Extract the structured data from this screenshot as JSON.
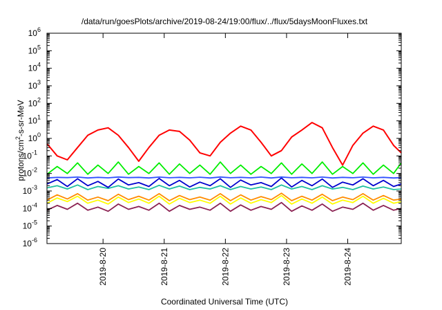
{
  "chart_data": {
    "type": "line",
    "title": "/data/run/goesPlots/archive/2019-08-24/19:00/flux/../flux/5daysMoonFluxes.txt",
    "xlabel": "Coordinated Universal Time (UTC)",
    "ylabel": {
      "prefix": "protons/cm",
      "sup": "2",
      "suffix": "-s-sr-MeV"
    },
    "x_scale": "time",
    "y_scale": "log",
    "ylim": [
      1e-06,
      1000000.0
    ],
    "xlim": [
      "2019-08-19T02:00",
      "2019-08-24T21:00"
    ],
    "y_ticks": [
      {
        "value": 1e-06,
        "base": "10",
        "exp": "-6"
      },
      {
        "value": 1e-05,
        "base": "10",
        "exp": "-5"
      },
      {
        "value": 0.0001,
        "base": "10",
        "exp": "-4"
      },
      {
        "value": 0.001,
        "base": "10",
        "exp": "-3"
      },
      {
        "value": 0.01,
        "base": "10",
        "exp": "-2"
      },
      {
        "value": 0.1,
        "base": "10",
        "exp": "-1"
      },
      {
        "value": 1.0,
        "base": "10",
        "exp": "0"
      },
      {
        "value": 10.0,
        "base": "10",
        "exp": "1"
      },
      {
        "value": 100.0,
        "base": "10",
        "exp": "2"
      },
      {
        "value": 1000.0,
        "base": "10",
        "exp": "3"
      },
      {
        "value": 10000.0,
        "base": "10",
        "exp": "4"
      },
      {
        "value": 100000.0,
        "base": "10",
        "exp": "5"
      },
      {
        "value": 1000000.0,
        "base": "10",
        "exp": "6"
      }
    ],
    "x_ticks": [
      {
        "value": "2019-08-20T00:00",
        "label": "2019-8-20"
      },
      {
        "value": "2019-08-21T00:00",
        "label": "2019-8-21"
      },
      {
        "value": "2019-08-22T00:00",
        "label": "2019-8-22"
      },
      {
        "value": "2019-08-23T00:00",
        "label": "2019-8-23"
      },
      {
        "value": "2019-08-24T00:00",
        "label": "2019-8-24"
      }
    ],
    "grid": false,
    "legend": "none",
    "series": [
      {
        "color": "#8b2252",
        "x": [
          "2019-08-19T02:00",
          "2019-08-19T06:00",
          "2019-08-19T10:00",
          "2019-08-19T14:00",
          "2019-08-19T18:00",
          "2019-08-19T22:00",
          "2019-08-20T02:00",
          "2019-08-20T06:00",
          "2019-08-20T10:00",
          "2019-08-20T14:00",
          "2019-08-20T18:00",
          "2019-08-20T22:00",
          "2019-08-21T02:00",
          "2019-08-21T06:00",
          "2019-08-21T10:00",
          "2019-08-21T14:00",
          "2019-08-21T18:00",
          "2019-08-21T22:00",
          "2019-08-22T02:00",
          "2019-08-22T06:00",
          "2019-08-22T10:00",
          "2019-08-22T14:00",
          "2019-08-22T18:00",
          "2019-08-22T22:00",
          "2019-08-23T02:00",
          "2019-08-23T06:00",
          "2019-08-23T10:00",
          "2019-08-23T14:00",
          "2019-08-23T18:00",
          "2019-08-23T22:00",
          "2019-08-24T02:00",
          "2019-08-24T06:00",
          "2019-08-24T10:00",
          "2019-08-24T14:00",
          "2019-08-24T18:00",
          "2019-08-24T21:00"
        ],
        "values": [
          8e-05,
          0.00015,
          9e-05,
          0.0002,
          8e-05,
          0.00012,
          7e-05,
          0.00018,
          9e-05,
          0.00013,
          8e-05,
          0.0002,
          7e-05,
          0.00015,
          9e-05,
          0.00012,
          8e-05,
          0.0002,
          7e-05,
          0.00016,
          8e-05,
          0.00013,
          9e-05,
          0.00022,
          7e-05,
          0.00014,
          8e-05,
          0.00018,
          7e-05,
          0.00012,
          9e-05,
          0.0002,
          8e-05,
          0.00015,
          8e-05,
          0.0001
        ]
      },
      {
        "color": "#ffff00",
        "x": [
          "2019-08-19T02:00",
          "2019-08-19T06:00",
          "2019-08-19T10:00",
          "2019-08-19T14:00",
          "2019-08-19T18:00",
          "2019-08-19T22:00",
          "2019-08-20T02:00",
          "2019-08-20T06:00",
          "2019-08-20T10:00",
          "2019-08-20T14:00",
          "2019-08-20T18:00",
          "2019-08-20T22:00",
          "2019-08-21T02:00",
          "2019-08-21T06:00",
          "2019-08-21T10:00",
          "2019-08-21T14:00",
          "2019-08-21T18:00",
          "2019-08-21T22:00",
          "2019-08-22T02:00",
          "2019-08-22T06:00",
          "2019-08-22T10:00",
          "2019-08-22T14:00",
          "2019-08-22T18:00",
          "2019-08-22T22:00",
          "2019-08-23T02:00",
          "2019-08-23T06:00",
          "2019-08-23T10:00",
          "2019-08-23T14:00",
          "2019-08-23T18:00",
          "2019-08-23T22:00",
          "2019-08-24T02:00",
          "2019-08-24T06:00",
          "2019-08-24T10:00",
          "2019-08-24T14:00",
          "2019-08-24T18:00",
          "2019-08-24T21:00"
        ],
        "values": [
          0.0002,
          0.0004,
          0.00025,
          0.0005,
          0.0002,
          0.0003,
          0.00018,
          0.00045,
          0.00022,
          0.00035,
          0.0002,
          0.0005,
          0.00018,
          0.00038,
          0.00022,
          0.0003,
          0.0002,
          0.0005,
          0.00018,
          0.0004,
          0.0002,
          0.00032,
          0.00022,
          0.00055,
          0.00018,
          0.00035,
          0.0002,
          0.00045,
          0.00018,
          0.0003,
          0.00022,
          0.0005,
          0.0002,
          0.00038,
          0.0002,
          0.00025
        ]
      },
      {
        "color": "#ff8c00",
        "x": [
          "2019-08-19T02:00",
          "2019-08-19T06:00",
          "2019-08-19T10:00",
          "2019-08-19T14:00",
          "2019-08-19T18:00",
          "2019-08-19T22:00",
          "2019-08-20T02:00",
          "2019-08-20T06:00",
          "2019-08-20T10:00",
          "2019-08-20T14:00",
          "2019-08-20T18:00",
          "2019-08-20T22:00",
          "2019-08-21T02:00",
          "2019-08-21T06:00",
          "2019-08-21T10:00",
          "2019-08-21T14:00",
          "2019-08-21T18:00",
          "2019-08-21T22:00",
          "2019-08-22T02:00",
          "2019-08-22T06:00",
          "2019-08-22T10:00",
          "2019-08-22T14:00",
          "2019-08-22T18:00",
          "2019-08-22T22:00",
          "2019-08-23T02:00",
          "2019-08-23T06:00",
          "2019-08-23T10:00",
          "2019-08-23T14:00",
          "2019-08-23T18:00",
          "2019-08-23T22:00",
          "2019-08-24T02:00",
          "2019-08-24T06:00",
          "2019-08-24T10:00",
          "2019-08-24T14:00",
          "2019-08-24T18:00",
          "2019-08-24T21:00"
        ],
        "values": [
          0.0003,
          0.0006,
          0.00035,
          0.0007,
          0.0003,
          0.00045,
          0.00028,
          0.00065,
          0.00032,
          0.0005,
          0.0003,
          0.0007,
          0.00028,
          0.00055,
          0.00032,
          0.00045,
          0.0003,
          0.0007,
          0.00028,
          0.0006,
          0.0003,
          0.00048,
          0.00032,
          0.00075,
          0.00028,
          0.0005,
          0.0003,
          0.00065,
          0.00028,
          0.00045,
          0.00032,
          0.0007,
          0.0003,
          0.00055,
          0.0003,
          0.00035
        ]
      },
      {
        "color": "#20c0a0",
        "x": [
          "2019-08-19T02:00",
          "2019-08-19T06:00",
          "2019-08-19T10:00",
          "2019-08-19T14:00",
          "2019-08-19T18:00",
          "2019-08-19T22:00",
          "2019-08-20T02:00",
          "2019-08-20T06:00",
          "2019-08-20T10:00",
          "2019-08-20T14:00",
          "2019-08-20T18:00",
          "2019-08-20T22:00",
          "2019-08-21T02:00",
          "2019-08-21T06:00",
          "2019-08-21T10:00",
          "2019-08-21T14:00",
          "2019-08-21T18:00",
          "2019-08-21T22:00",
          "2019-08-22T02:00",
          "2019-08-22T06:00",
          "2019-08-22T10:00",
          "2019-08-22T14:00",
          "2019-08-22T18:00",
          "2019-08-22T22:00",
          "2019-08-23T02:00",
          "2019-08-23T06:00",
          "2019-08-23T10:00",
          "2019-08-23T14:00",
          "2019-08-23T18:00",
          "2019-08-23T22:00",
          "2019-08-24T02:00",
          "2019-08-24T06:00",
          "2019-08-24T10:00",
          "2019-08-24T14:00",
          "2019-08-24T18:00",
          "2019-08-24T21:00"
        ],
        "values": [
          0.0015,
          0.002,
          0.0013,
          0.0022,
          0.0012,
          0.0018,
          0.0014,
          0.002,
          0.0013,
          0.0017,
          0.0012,
          0.0021,
          0.0013,
          0.0019,
          0.0012,
          0.0016,
          0.0013,
          0.002,
          0.0012,
          0.0018,
          0.0013,
          0.0017,
          0.0012,
          0.0022,
          0.0013,
          0.0018,
          0.0012,
          0.002,
          0.0013,
          0.0016,
          0.0012,
          0.0019,
          0.0013,
          0.0017,
          0.0012,
          0.0013
        ]
      },
      {
        "color": "#0000cd",
        "x": [
          "2019-08-19T02:00",
          "2019-08-19T06:00",
          "2019-08-19T10:00",
          "2019-08-19T14:00",
          "2019-08-19T18:00",
          "2019-08-19T22:00",
          "2019-08-20T02:00",
          "2019-08-20T06:00",
          "2019-08-20T10:00",
          "2019-08-20T14:00",
          "2019-08-20T18:00",
          "2019-08-20T22:00",
          "2019-08-21T02:00",
          "2019-08-21T06:00",
          "2019-08-21T10:00",
          "2019-08-21T14:00",
          "2019-08-21T18:00",
          "2019-08-21T22:00",
          "2019-08-22T02:00",
          "2019-08-22T06:00",
          "2019-08-22T10:00",
          "2019-08-22T14:00",
          "2019-08-22T18:00",
          "2019-08-22T22:00",
          "2019-08-23T02:00",
          "2019-08-23T06:00",
          "2019-08-23T10:00",
          "2019-08-23T14:00",
          "2019-08-23T18:00",
          "2019-08-23T22:00",
          "2019-08-24T02:00",
          "2019-08-24T06:00",
          "2019-08-24T10:00",
          "2019-08-24T14:00",
          "2019-08-24T18:00",
          "2019-08-24T21:00"
        ],
        "values": [
          0.0025,
          0.0045,
          0.0018,
          0.005,
          0.002,
          0.0035,
          0.0016,
          0.0048,
          0.0022,
          0.003,
          0.0018,
          0.0052,
          0.002,
          0.004,
          0.0017,
          0.0032,
          0.002,
          0.005,
          0.0016,
          0.0042,
          0.0022,
          0.003,
          0.0018,
          0.0055,
          0.0017,
          0.004,
          0.002,
          0.0048,
          0.0016,
          0.0032,
          0.0022,
          0.005,
          0.002,
          0.004,
          0.0018,
          0.0025
        ]
      },
      {
        "color": "#3050ff",
        "x": [
          "2019-08-19T02:00",
          "2019-08-19T06:00",
          "2019-08-19T10:00",
          "2019-08-19T14:00",
          "2019-08-19T18:00",
          "2019-08-19T22:00",
          "2019-08-20T02:00",
          "2019-08-20T06:00",
          "2019-08-20T10:00",
          "2019-08-20T14:00",
          "2019-08-20T18:00",
          "2019-08-20T22:00",
          "2019-08-21T02:00",
          "2019-08-21T06:00",
          "2019-08-21T10:00",
          "2019-08-21T14:00",
          "2019-08-21T18:00",
          "2019-08-21T22:00",
          "2019-08-22T02:00",
          "2019-08-22T06:00",
          "2019-08-22T10:00",
          "2019-08-22T14:00",
          "2019-08-22T18:00",
          "2019-08-22T22:00",
          "2019-08-23T02:00",
          "2019-08-23T06:00",
          "2019-08-23T10:00",
          "2019-08-23T14:00",
          "2019-08-23T18:00",
          "2019-08-23T22:00",
          "2019-08-24T02:00",
          "2019-08-24T06:00",
          "2019-08-24T10:00",
          "2019-08-24T14:00",
          "2019-08-24T18:00",
          "2019-08-24T21:00"
        ],
        "values": [
          0.0055,
          0.006,
          0.0058,
          0.0062,
          0.0055,
          0.006,
          0.0056,
          0.0063,
          0.0058,
          0.006,
          0.0055,
          0.0062,
          0.0057,
          0.006,
          0.0056,
          0.0061,
          0.0055,
          0.0063,
          0.0057,
          0.006,
          0.0056,
          0.0062,
          0.0055,
          0.0063,
          0.0057,
          0.006,
          0.0056,
          0.0062,
          0.0055,
          0.006,
          0.0057,
          0.0062,
          0.0056,
          0.006,
          0.0055,
          0.0058
        ]
      },
      {
        "color": "#00ee00",
        "x": [
          "2019-08-19T02:00",
          "2019-08-19T06:00",
          "2019-08-19T10:00",
          "2019-08-19T14:00",
          "2019-08-19T18:00",
          "2019-08-19T22:00",
          "2019-08-20T02:00",
          "2019-08-20T06:00",
          "2019-08-20T10:00",
          "2019-08-20T14:00",
          "2019-08-20T18:00",
          "2019-08-20T22:00",
          "2019-08-21T02:00",
          "2019-08-21T06:00",
          "2019-08-21T10:00",
          "2019-08-21T14:00",
          "2019-08-21T18:00",
          "2019-08-21T22:00",
          "2019-08-22T02:00",
          "2019-08-22T06:00",
          "2019-08-22T10:00",
          "2019-08-22T14:00",
          "2019-08-22T18:00",
          "2019-08-22T22:00",
          "2019-08-23T02:00",
          "2019-08-23T06:00",
          "2019-08-23T10:00",
          "2019-08-23T14:00",
          "2019-08-23T18:00",
          "2019-08-23T22:00",
          "2019-08-24T02:00",
          "2019-08-24T06:00",
          "2019-08-24T10:00",
          "2019-08-24T14:00",
          "2019-08-24T18:00",
          "2019-08-24T21:00"
        ],
        "values": [
          0.009,
          0.025,
          0.01,
          0.04,
          0.009,
          0.03,
          0.01,
          0.045,
          0.009,
          0.025,
          0.01,
          0.04,
          0.009,
          0.035,
          0.01,
          0.03,
          0.009,
          0.045,
          0.01,
          0.03,
          0.009,
          0.025,
          0.01,
          0.04,
          0.009,
          0.035,
          0.01,
          0.045,
          0.009,
          0.025,
          0.01,
          0.04,
          0.009,
          0.03,
          0.01,
          0.04
        ]
      },
      {
        "color": "#ff0000",
        "x": [
          "2019-08-19T02:00",
          "2019-08-19T06:00",
          "2019-08-19T10:00",
          "2019-08-19T14:00",
          "2019-08-19T18:00",
          "2019-08-19T22:00",
          "2019-08-20T02:00",
          "2019-08-20T06:00",
          "2019-08-20T10:00",
          "2019-08-20T14:00",
          "2019-08-20T18:00",
          "2019-08-20T22:00",
          "2019-08-21T02:00",
          "2019-08-21T06:00",
          "2019-08-21T10:00",
          "2019-08-21T14:00",
          "2019-08-21T18:00",
          "2019-08-21T22:00",
          "2019-08-22T02:00",
          "2019-08-22T06:00",
          "2019-08-22T10:00",
          "2019-08-22T14:00",
          "2019-08-22T18:00",
          "2019-08-22T22:00",
          "2019-08-23T02:00",
          "2019-08-23T06:00",
          "2019-08-23T10:00",
          "2019-08-23T14:00",
          "2019-08-23T18:00",
          "2019-08-23T22:00",
          "2019-08-24T02:00",
          "2019-08-24T06:00",
          "2019-08-24T10:00",
          "2019-08-24T14:00",
          "2019-08-24T18:00",
          "2019-08-24T21:00"
        ],
        "values": [
          0.5,
          0.1,
          0.06,
          0.3,
          1.5,
          3,
          4,
          1.5,
          0.3,
          0.05,
          0.3,
          1.5,
          3,
          2.5,
          0.8,
          0.15,
          0.1,
          0.6,
          2,
          5,
          3,
          0.6,
          0.1,
          0.2,
          1.2,
          3,
          8,
          4,
          0.3,
          0.03,
          0.4,
          2,
          5,
          3,
          0.4,
          0.15
        ]
      }
    ]
  }
}
